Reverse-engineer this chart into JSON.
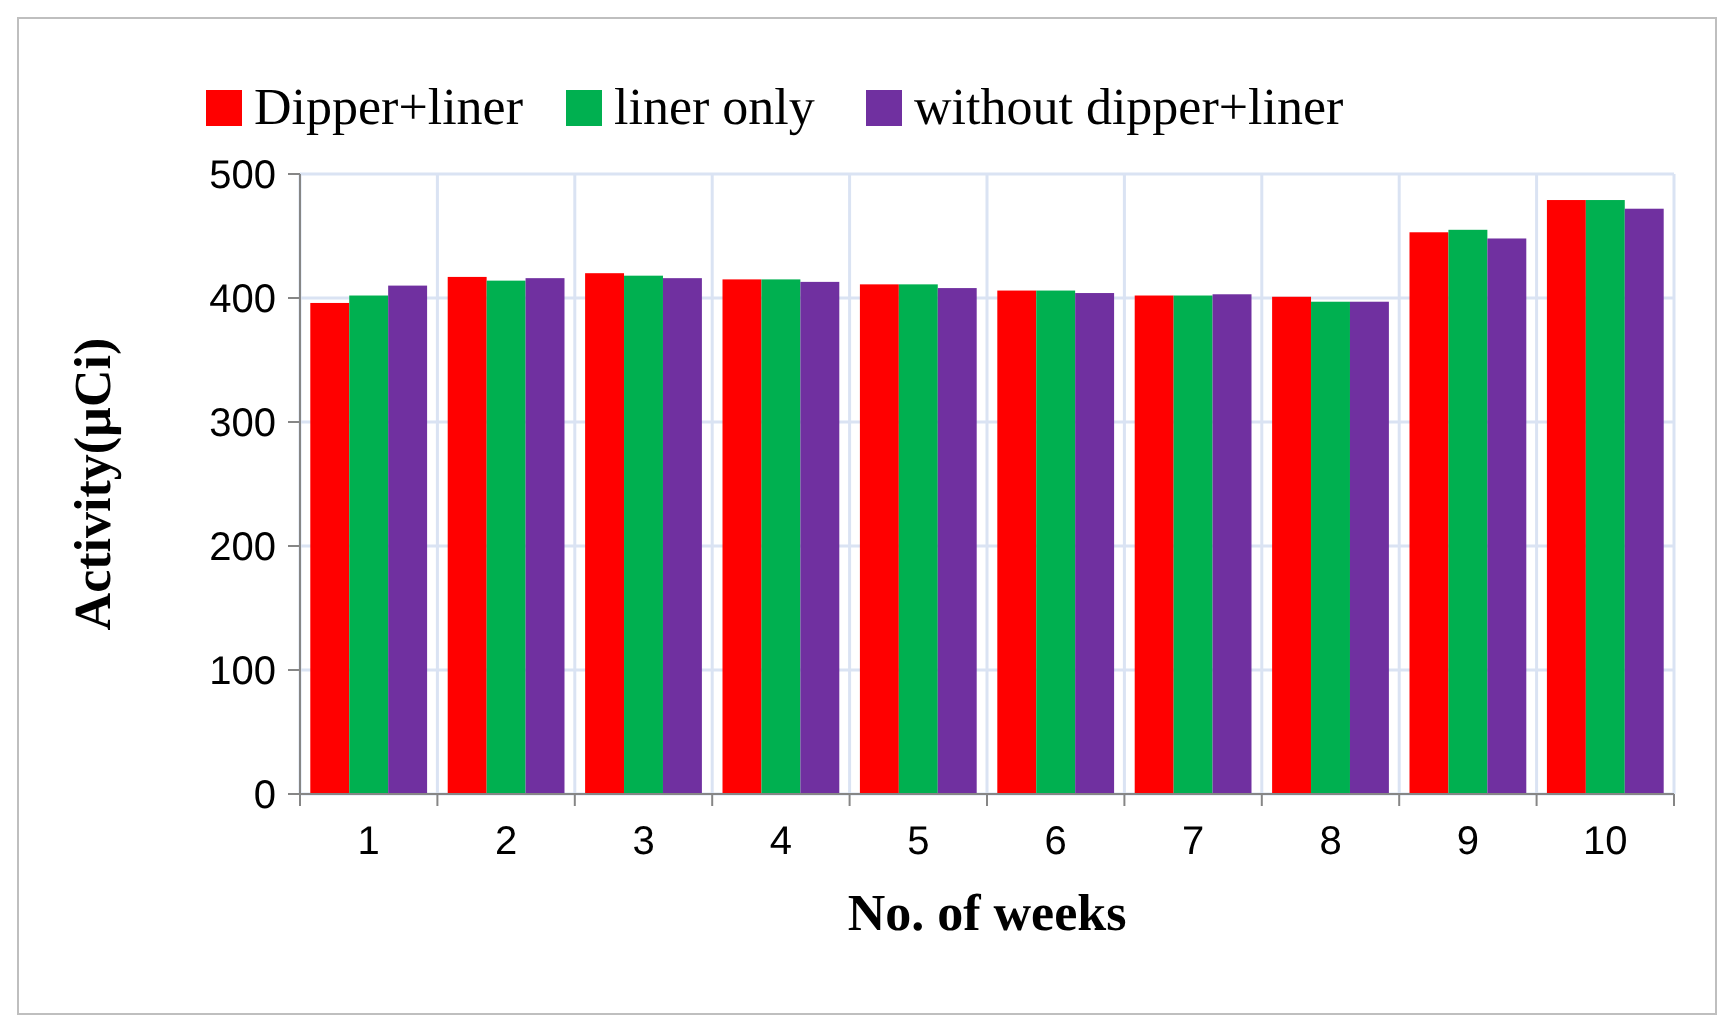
{
  "chart_data": {
    "type": "bar",
    "xlabel": "No. of  weeks",
    "ylabel": "Activity(µCi)",
    "categories": [
      "1",
      "2",
      "3",
      "4",
      "5",
      "6",
      "7",
      "8",
      "9",
      "10"
    ],
    "series": [
      {
        "name": "Dipper+liner",
        "color": "#ff0000",
        "values": [
          396,
          417,
          420,
          415,
          411,
          406,
          402,
          401,
          453,
          479
        ]
      },
      {
        "name": "liner only",
        "color": "#00b050",
        "values": [
          402,
          414,
          418,
          415,
          411,
          406,
          402,
          397,
          455,
          479
        ]
      },
      {
        "name": "without dipper+liner",
        "color": "#7030a0",
        "values": [
          410,
          416,
          416,
          413,
          408,
          404,
          403,
          397,
          448,
          472
        ]
      }
    ],
    "ylim": [
      0,
      500
    ],
    "yticks": [
      0,
      100,
      200,
      300,
      400,
      500
    ],
    "grid": true,
    "legend": "top"
  }
}
